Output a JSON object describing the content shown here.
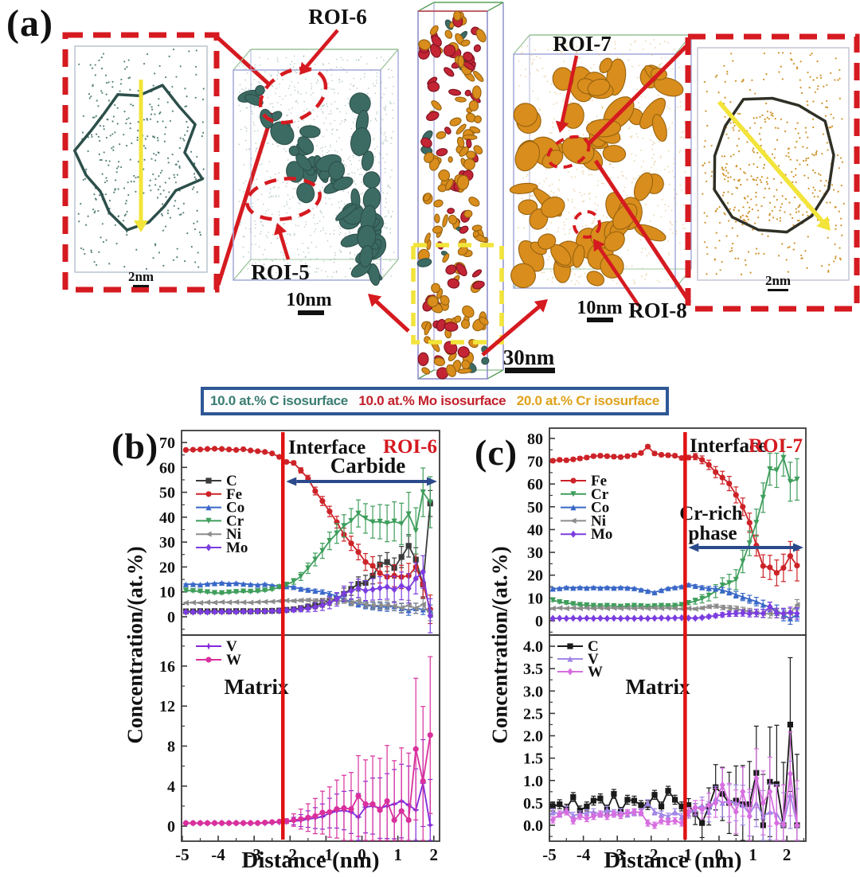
{
  "panel_a": {
    "label": "(a)",
    "roi5_label": "ROI-5",
    "roi6_label": "ROI-6",
    "roi7_label": "ROI-7",
    "roi8_label": "ROI-8",
    "left_inset_scale": "2nm",
    "teal_box_scale": "10nm",
    "needle_scale": "30nm",
    "orange_box_scale": "10nm",
    "right_inset_scale": "2nm",
    "colors": {
      "carbide_teal": "#3c6b63",
      "mo_red": "#c32535",
      "cr_orange": "#d98d1c",
      "annotation_red": "#d51a20",
      "arrow_yellow": "#f2e43a"
    }
  },
  "figure": {
    "panel_b_label": "(b)",
    "panel_c_label": "(c)"
  },
  "isosurface_legend": {
    "border_color": "#2e5795",
    "items": [
      {
        "label": "10.0 at.% C isosurface",
        "color": "#3a7d72"
      },
      {
        "label": "10.0 at.% Mo isosurface",
        "color": "#c2202a"
      },
      {
        "label": "20.0 at.% Cr isosurface",
        "color": "#dfa21c"
      }
    ]
  },
  "chart_data": [
    {
      "type": "line",
      "id": "b-top",
      "ylabel": "Concentration/(at.%)",
      "xlim": [
        -5.02,
        2.16
      ],
      "ylim": [
        -7.35,
        74.8
      ],
      "ytick_values": [
        0,
        10,
        20,
        30,
        40,
        50,
        60,
        70
      ],
      "ytick_labels": [
        "0",
        "10",
        "20",
        "30",
        "40",
        "50",
        "60",
        "70"
      ],
      "annotations": {
        "interface_label": "Interface",
        "roi_label": "ROI-6",
        "region_label": "Carbide",
        "interface_x": -2.2,
        "region_arrow_y": 54.3,
        "interface_color": "#e01212",
        "arrow_color": "#2b4a8c"
      },
      "x": [
        -4.9,
        -4.7,
        -4.5,
        -4.3,
        -4.1,
        -3.9,
        -3.7,
        -3.5,
        -3.3,
        -3.1,
        -2.9,
        -2.7,
        -2.5,
        -2.3,
        -2.1,
        -1.9,
        -1.7,
        -1.5,
        -1.3,
        -1.1,
        -0.9,
        -0.7,
        -0.5,
        -0.3,
        -0.1,
        0.1,
        0.3,
        0.5,
        0.7,
        0.9,
        1.1,
        1.3,
        1.5,
        1.7,
        1.9
      ],
      "series": [
        {
          "name": "C",
          "color": "#3a3a3a",
          "marker": "square",
          "err0": 0.3,
          "errg": 1.2,
          "errmax": 6,
          "values": [
            2.2,
            2.2,
            2.3,
            2.2,
            2.3,
            2.3,
            2.2,
            2.3,
            2.3,
            2.2,
            2.3,
            2.3,
            2.4,
            2.5,
            2.8,
            3.0,
            3.5,
            4.0,
            4.6,
            5.5,
            6.5,
            7.2,
            9.2,
            11.2,
            13.2,
            13.6,
            16.5,
            21.0,
            22.0,
            19.6,
            24.0,
            28.5,
            23.0,
            13.0,
            45.5
          ]
        },
        {
          "name": "Fe",
          "color": "#cd2328",
          "marker": "circle",
          "err0": 0.4,
          "errg": 1.3,
          "errmax": 6,
          "values": [
            67.0,
            67.1,
            67.2,
            67.4,
            67.5,
            67.4,
            67.2,
            67.0,
            67.3,
            66.8,
            66.5,
            66.2,
            65.6,
            64.2,
            62.2,
            61.8,
            58.8,
            55.5,
            50.5,
            46.5,
            42.3,
            38.0,
            33.0,
            29.5,
            26.0,
            22.0,
            20.5,
            17.5,
            16.0,
            16.5,
            16.0,
            16.5,
            20.0,
            13.0,
            3.0
          ]
        },
        {
          "name": "Co",
          "color": "#3a68c8",
          "marker": "tri-up",
          "err0": 0.25,
          "errg": 0.5,
          "errmax": 2,
          "values": [
            13.0,
            13.1,
            12.9,
            13.2,
            13.4,
            13.6,
            13.3,
            13.5,
            13.2,
            13.0,
            12.8,
            13.1,
            12.6,
            12.3,
            12.2,
            11.9,
            11.2,
            10.8,
            10.4,
            10.0,
            9.2,
            8.3,
            7.0,
            6.0,
            5.2,
            4.6,
            4.3,
            4.0,
            3.9,
            4.2,
            3.4,
            2.6,
            3.4,
            2.9,
            2.7
          ]
        },
        {
          "name": "Cr",
          "color": "#3f9e5c",
          "marker": "tri-down",
          "err0": 0.4,
          "errg": 2.4,
          "errmax": 11,
          "values": [
            10.6,
            10.4,
            10.2,
            9.9,
            9.6,
            9.5,
            9.8,
            10.0,
            10.2,
            10.1,
            10.3,
            10.6,
            11.0,
            11.9,
            12.9,
            14.2,
            16.2,
            19.5,
            23.0,
            26.5,
            30.5,
            33.5,
            36.5,
            38.5,
            41.5,
            39.5,
            38.0,
            38.2,
            37.5,
            38.3,
            37.3,
            41.2,
            34.5,
            50.0,
            46.0
          ]
        },
        {
          "name": "Ni",
          "color": "#8c8c8c",
          "marker": "tri-left",
          "err0": 0.25,
          "errg": 0.5,
          "errmax": 2.2,
          "values": [
            5.6,
            5.7,
            5.6,
            5.8,
            5.7,
            5.9,
            5.8,
            5.9,
            5.8,
            5.7,
            5.9,
            6.0,
            6.1,
            6.3,
            6.5,
            6.4,
            6.6,
            6.7,
            6.5,
            6.6,
            6.4,
            6.2,
            6.5,
            5.6,
            6.4,
            5.0,
            4.6,
            4.5,
            4.7,
            4.3,
            3.6,
            4.6,
            3.4,
            5.0,
            0.6
          ]
        },
        {
          "name": "Mo",
          "color": "#7b3de0",
          "marker": "diamond",
          "err0": 0.3,
          "errg": 1.6,
          "errmax": 8,
          "values": [
            1.9,
            1.9,
            2.0,
            1.9,
            2.0,
            2.0,
            2.1,
            2.0,
            2.1,
            2.1,
            2.2,
            2.2,
            2.3,
            2.4,
            2.6,
            2.8,
            3.1,
            3.4,
            3.9,
            4.6,
            5.6,
            7.0,
            9.3,
            10.4,
            11.4,
            10.5,
            11.0,
            11.5,
            12.0,
            11.0,
            12.4,
            11.4,
            15.4,
            18.0,
            0.4
          ]
        }
      ]
    },
    {
      "type": "line",
      "id": "b-bottom",
      "xlabel": "Distance (nm)",
      "xlim": [
        -5.02,
        2.16
      ],
      "ylim": [
        -1.51,
        19.1
      ],
      "ytick_values": [
        0,
        4,
        8,
        12,
        16
      ],
      "ytick_labels": [
        "0",
        "4",
        "8",
        "12",
        "16"
      ],
      "xtick_values": [
        -5,
        -4,
        -3,
        -2,
        -1,
        0,
        1,
        2
      ],
      "xtick_labels": [
        "-5",
        "-4",
        "-3",
        "-2",
        "-1",
        "0",
        "1",
        "2"
      ],
      "annotations": {
        "matrix_label": "Matrix",
        "interface_x": -2.2
      },
      "x": [
        -4.9,
        -4.7,
        -4.5,
        -4.3,
        -4.1,
        -3.9,
        -3.7,
        -3.5,
        -3.3,
        -3.1,
        -2.9,
        -2.7,
        -2.5,
        -2.3,
        -2.1,
        -1.9,
        -1.7,
        -1.5,
        -1.3,
        -1.1,
        -0.9,
        -0.7,
        -0.5,
        -0.3,
        -0.1,
        0.1,
        0.3,
        0.5,
        0.7,
        0.9,
        1.1,
        1.3,
        1.5,
        1.7,
        1.9
      ],
      "series": [
        {
          "name": "V",
          "color": "#8428d8",
          "marker": "star",
          "err0": 0.05,
          "errg": 1.1,
          "errmax": 6,
          "values": [
            0.3,
            0.3,
            0.3,
            0.3,
            0.3,
            0.3,
            0.3,
            0.3,
            0.3,
            0.3,
            0.3,
            0.3,
            0.35,
            0.4,
            0.45,
            0.5,
            0.55,
            0.7,
            0.8,
            0.95,
            1.3,
            1.5,
            1.55,
            1.4,
            0.9,
            1.9,
            2.0,
            1.8,
            2.0,
            2.2,
            2.5,
            2.1,
            1.6,
            4.3,
            0.1
          ]
        },
        {
          "name": "W",
          "color": "#d9309c",
          "marker": "circle",
          "err0": 0.05,
          "errg": 1.9,
          "errmax": 8.6,
          "values": [
            0.3,
            0.3,
            0.3,
            0.3,
            0.3,
            0.3,
            0.3,
            0.3,
            0.3,
            0.3,
            0.3,
            0.35,
            0.4,
            0.45,
            0.5,
            0.6,
            0.7,
            0.85,
            1.0,
            1.35,
            1.4,
            1.7,
            1.8,
            1.7,
            3.0,
            2.2,
            2.2,
            1.6,
            2.5,
            0.6,
            1.5,
            0.6,
            7.7,
            4.5,
            9.1
          ]
        }
      ]
    },
    {
      "type": "line",
      "id": "c-top",
      "ylabel": "Concentration/(at.%)",
      "xlim": [
        -5.0,
        2.56
      ],
      "ylim": [
        -6.29,
        84.5
      ],
      "ytick_values": [
        0,
        10,
        20,
        30,
        40,
        50,
        60,
        70,
        80
      ],
      "ytick_labels": [
        "0",
        "10",
        "20",
        "30",
        "40",
        "50",
        "60",
        "70",
        "80"
      ],
      "annotations": {
        "interface_label": "Interface",
        "roi_label": "ROI-7",
        "region_label_line1": "Cr-rich",
        "region_label_line2": "phase",
        "interface_x": -1.0,
        "region_arrow_y": 32.1,
        "interface_color": "#e01212",
        "arrow_color": "#2b4a8c"
      },
      "x": [
        -4.9,
        -4.7,
        -4.5,
        -4.3,
        -4.1,
        -3.9,
        -3.7,
        -3.5,
        -3.3,
        -3.1,
        -2.9,
        -2.7,
        -2.5,
        -2.3,
        -2.1,
        -1.9,
        -1.7,
        -1.5,
        -1.3,
        -1.1,
        -0.9,
        -0.7,
        -0.5,
        -0.3,
        -0.1,
        0.1,
        0.3,
        0.5,
        0.7,
        0.9,
        1.1,
        1.3,
        1.5,
        1.7,
        1.9,
        2.1,
        2.3
      ],
      "series": [
        {
          "name": "Fe",
          "color": "#cd2328",
          "marker": "circle",
          "err0": 0.8,
          "errg": 1.8,
          "errmax": 7,
          "values": [
            70.2,
            70.6,
            70.4,
            70.8,
            71.2,
            71.6,
            72.2,
            72.4,
            72.2,
            72.0,
            71.8,
            72.2,
            72.6,
            73.6,
            76.4,
            73.4,
            72.8,
            72.6,
            72.4,
            71.4,
            71.6,
            72.0,
            70.6,
            68.4,
            65.2,
            62.8,
            60.2,
            55.2,
            50.0,
            43.0,
            33.0,
            24.0,
            23.4,
            21.0,
            23.2,
            28.4,
            24.2
          ]
        },
        {
          "name": "Cr",
          "color": "#3f9e5c",
          "marker": "tri-down",
          "err0": 0.5,
          "errg": 2.6,
          "errmax": 9.5,
          "values": [
            9.0,
            8.2,
            7.8,
            7.4,
            7.0,
            6.8,
            6.6,
            6.4,
            6.6,
            6.4,
            6.2,
            6.4,
            6.6,
            6.4,
            6.2,
            6.4,
            6.6,
            6.4,
            6.6,
            7.0,
            7.8,
            8.6,
            9.6,
            11.0,
            13.0,
            15.5,
            16.5,
            18.0,
            26.0,
            34.0,
            43.0,
            54.0,
            66.5,
            66.0,
            71.5,
            61.0,
            62.0
          ]
        },
        {
          "name": "Co",
          "color": "#3a68c8",
          "marker": "tri-up",
          "err0": 0.4,
          "errg": 0.7,
          "errmax": 3,
          "values": [
            14.0,
            14.2,
            14.6,
            14.4,
            14.6,
            14.4,
            14.6,
            14.4,
            14.6,
            14.4,
            14.6,
            14.4,
            14.2,
            13.6,
            13.0,
            12.4,
            13.4,
            14.2,
            14.6,
            15.0,
            15.8,
            15.2,
            14.6,
            14.2,
            14.0,
            13.4,
            12.6,
            11.4,
            10.4,
            9.4,
            8.4,
            7.0,
            6.0,
            4.6,
            2.4,
            1.0,
            2.6
          ]
        },
        {
          "name": "Ni",
          "color": "#8c8c8c",
          "marker": "tri-left",
          "err0": 0.3,
          "errg": 0.6,
          "errmax": 3.5,
          "values": [
            5.4,
            5.6,
            5.4,
            5.6,
            5.4,
            5.6,
            5.4,
            5.6,
            5.4,
            5.6,
            5.4,
            5.6,
            5.4,
            5.6,
            5.4,
            5.6,
            5.4,
            5.6,
            5.4,
            5.2,
            5.4,
            5.2,
            5.6,
            6.2,
            6.4,
            5.8,
            5.6,
            5.2,
            4.6,
            4.0,
            3.4,
            3.2,
            3.0,
            3.2,
            3.4,
            3.2,
            7.0
          ]
        },
        {
          "name": "Mo",
          "color": "#7b3de0",
          "marker": "diamond",
          "err0": 0.2,
          "errg": 0.7,
          "errmax": 3,
          "values": [
            1.0,
            1.1,
            1.0,
            1.1,
            1.0,
            1.1,
            1.0,
            1.1,
            1.0,
            1.1,
            1.0,
            1.1,
            1.0,
            1.1,
            1.0,
            1.1,
            1.2,
            1.1,
            1.2,
            1.3,
            1.2,
            1.1,
            1.4,
            1.8,
            2.2,
            2.6,
            3.0,
            3.2,
            3.4,
            3.2,
            3.4,
            3.2,
            6.2,
            3.4,
            3.2,
            3.6,
            3.2
          ]
        }
      ]
    },
    {
      "type": "line",
      "id": "c-bottom",
      "xlabel": "Distance (nm)",
      "xlim": [
        -5.0,
        2.56
      ],
      "ylim": [
        -0.356,
        4.25
      ],
      "ytick_values": [
        0,
        0.5,
        1,
        1.5,
        2,
        2.5,
        3,
        3.5,
        4
      ],
      "ytick_labels": [
        "0.0",
        "0.5",
        "1.0",
        "1.5",
        "2.0",
        "2.5",
        "3.0",
        "3.5",
        "4.0"
      ],
      "xtick_values": [
        -5,
        -4,
        -3,
        -2,
        -1,
        0,
        1,
        2
      ],
      "xtick_labels": [
        "-5",
        "-4",
        "-3",
        "-2",
        "-1",
        "0",
        "1",
        "2"
      ],
      "annotations": {
        "matrix_label": "Matrix",
        "interface_x": -1.0
      },
      "x": [
        -4.9,
        -4.7,
        -4.5,
        -4.3,
        -4.1,
        -3.9,
        -3.7,
        -3.5,
        -3.3,
        -3.1,
        -2.9,
        -2.7,
        -2.5,
        -2.3,
        -2.1,
        -1.9,
        -1.7,
        -1.5,
        -1.3,
        -1.1,
        -0.9,
        -0.7,
        -0.5,
        -0.3,
        -0.1,
        0.1,
        0.3,
        0.5,
        0.7,
        0.9,
        1.1,
        1.3,
        1.5,
        1.7,
        1.9,
        2.1,
        2.3
      ],
      "series": [
        {
          "name": "C",
          "color": "#1a1a1a",
          "marker": "square",
          "err0": 0.1,
          "errg": 0.45,
          "errmax": 1.6,
          "values": [
            0.42,
            0.47,
            0.37,
            0.63,
            0.33,
            0.42,
            0.55,
            0.6,
            0.35,
            0.7,
            0.3,
            0.57,
            0.55,
            0.45,
            0.45,
            0.68,
            0.42,
            0.77,
            0.57,
            0.42,
            0.45,
            0.25,
            0.05,
            0.42,
            0.85,
            0.7,
            0.5,
            0.55,
            0.47,
            0.47,
            1.17,
            0.0,
            0.97,
            0.92,
            0.0,
            2.25,
            0.0
          ]
        },
        {
          "name": "V",
          "color": "#a287e6",
          "marker": "tri-up",
          "err0": 0.07,
          "errg": 0.22,
          "errmax": 0.9,
          "values": [
            0.3,
            0.25,
            0.35,
            0.22,
            0.25,
            0.28,
            0.3,
            0.25,
            0.35,
            0.28,
            0.3,
            0.25,
            0.28,
            0.3,
            0.5,
            0.3,
            0.25,
            0.2,
            0.3,
            0.2,
            0.25,
            0.35,
            0.45,
            0.3,
            0.6,
            0.5,
            0.55,
            0.5,
            0.45,
            0.25,
            0.5,
            0.2,
            0.3,
            0.25,
            0.02,
            0.68,
            0.02
          ]
        },
        {
          "name": "W",
          "color": "#d76ee0",
          "marker": "diamond",
          "err0": 0.07,
          "errg": 0.28,
          "errmax": 1.0,
          "values": [
            0.12,
            0.25,
            0.3,
            0.1,
            0.2,
            0.15,
            0.2,
            0.25,
            0.2,
            0.25,
            0.22,
            0.28,
            0.3,
            0.28,
            0.05,
            0.0,
            0.1,
            0.08,
            0.1,
            0.05,
            0.3,
            0.4,
            0.35,
            0.45,
            0.5,
            0.9,
            0.5,
            0.3,
            0.75,
            0.2,
            1.05,
            0.5,
            0.75,
            0.05,
            0.02,
            1.15,
            0.0
          ]
        }
      ]
    }
  ]
}
